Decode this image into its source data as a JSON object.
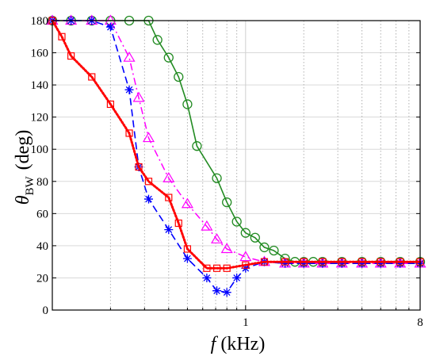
{
  "chart_data": {
    "type": "line",
    "xscale": "log",
    "xlim": [
      0.1,
      8
    ],
    "ylim": [
      0,
      180
    ],
    "grid": true,
    "x_tick_labels": [
      "1",
      "8"
    ],
    "y_ticks": [
      0,
      20,
      40,
      60,
      80,
      100,
      120,
      140,
      160,
      180
    ],
    "xlabel_var": "f",
    "xlabel_unit": "(kHz)",
    "ylabel_var": "θ",
    "ylabel_sub": "BW",
    "ylabel_unit": "(deg)",
    "series": [
      {
        "color": "#228B22",
        "linestyle": "solid",
        "marker": "circle",
        "points": [
          [
            0.1,
            180
          ],
          [
            0.125,
            180
          ],
          [
            0.16,
            180
          ],
          [
            0.2,
            180
          ],
          [
            0.25,
            180
          ],
          [
            0.315,
            180
          ],
          [
            0.35,
            168
          ],
          [
            0.4,
            157
          ],
          [
            0.45,
            145
          ],
          [
            0.5,
            128
          ],
          [
            0.56,
            102
          ],
          [
            0.71,
            82
          ],
          [
            0.8,
            67
          ],
          [
            0.9,
            55
          ],
          [
            1.0,
            48
          ],
          [
            1.12,
            45
          ],
          [
            1.25,
            39
          ],
          [
            1.4,
            37
          ],
          [
            1.6,
            32
          ],
          [
            1.8,
            30
          ],
          [
            2.0,
            30
          ],
          [
            2.24,
            30
          ],
          [
            2.5,
            30
          ],
          [
            3.15,
            30
          ],
          [
            4.0,
            30
          ],
          [
            5.0,
            30
          ],
          [
            6.3,
            30
          ],
          [
            8.0,
            30
          ]
        ]
      },
      {
        "color": "#FF00FF",
        "linestyle": "dashdot",
        "marker": "triangle",
        "points": [
          [
            0.1,
            180
          ],
          [
            0.125,
            180
          ],
          [
            0.16,
            180
          ],
          [
            0.2,
            180
          ],
          [
            0.25,
            157
          ],
          [
            0.28,
            132
          ],
          [
            0.315,
            107
          ],
          [
            0.4,
            82
          ],
          [
            0.5,
            66
          ],
          [
            0.63,
            52
          ],
          [
            0.71,
            44
          ],
          [
            0.8,
            38
          ],
          [
            1.0,
            33
          ],
          [
            1.25,
            30
          ],
          [
            1.6,
            29
          ],
          [
            2.0,
            29
          ],
          [
            2.5,
            29
          ],
          [
            3.15,
            29
          ],
          [
            4.0,
            29
          ],
          [
            5.0,
            29
          ],
          [
            6.3,
            29
          ],
          [
            8.0,
            29
          ]
        ]
      },
      {
        "color": "#0000FF",
        "linestyle": "dashed",
        "marker": "asterisk",
        "points": [
          [
            0.1,
            180
          ],
          [
            0.125,
            180
          ],
          [
            0.16,
            180
          ],
          [
            0.2,
            176
          ],
          [
            0.25,
            137
          ],
          [
            0.28,
            89
          ],
          [
            0.315,
            69
          ],
          [
            0.4,
            50
          ],
          [
            0.5,
            32
          ],
          [
            0.63,
            20
          ],
          [
            0.71,
            12
          ],
          [
            0.8,
            11
          ],
          [
            0.9,
            20
          ],
          [
            1.0,
            26
          ],
          [
            1.25,
            30
          ],
          [
            1.6,
            29
          ],
          [
            2.0,
            29
          ],
          [
            2.5,
            29
          ],
          [
            3.15,
            29
          ],
          [
            4.0,
            29
          ],
          [
            5.0,
            29
          ],
          [
            6.3,
            29
          ],
          [
            8.0,
            29
          ]
        ]
      },
      {
        "color": "#FF0000",
        "linestyle": "dotted",
        "marker": "square",
        "points": [
          [
            0.1,
            180
          ],
          [
            0.112,
            170
          ],
          [
            0.125,
            158
          ],
          [
            0.16,
            145
          ],
          [
            0.2,
            128
          ],
          [
            0.25,
            110
          ],
          [
            0.28,
            89
          ],
          [
            0.315,
            80
          ],
          [
            0.4,
            70
          ],
          [
            0.45,
            54
          ],
          [
            0.5,
            38
          ],
          [
            0.63,
            26
          ],
          [
            0.71,
            26
          ],
          [
            0.8,
            26
          ],
          [
            1.0,
            28
          ],
          [
            1.25,
            30
          ],
          [
            1.6,
            30
          ],
          [
            2.0,
            30
          ],
          [
            2.5,
            30
          ],
          [
            3.15,
            30
          ],
          [
            4.0,
            30
          ],
          [
            5.0,
            30
          ],
          [
            6.3,
            30
          ],
          [
            8.0,
            30
          ]
        ]
      }
    ]
  }
}
